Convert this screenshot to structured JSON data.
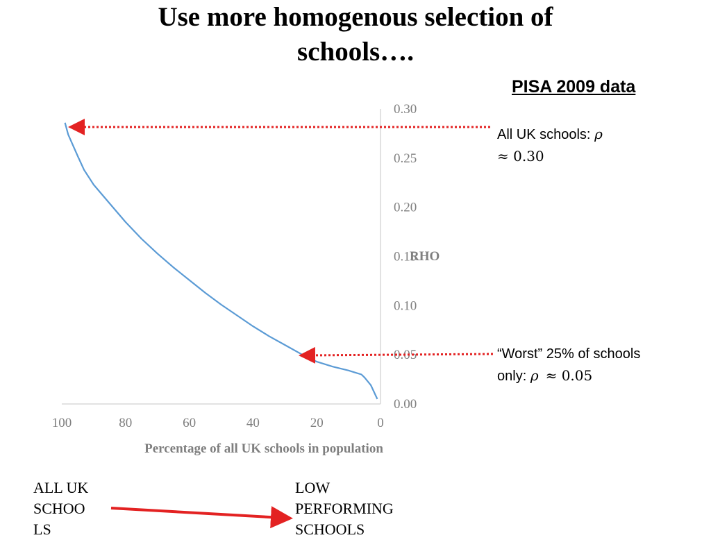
{
  "slide": {
    "title": "Use more homogenous selection of schools….",
    "subtitle": "PISA 2009 data"
  },
  "annotations": {
    "all_schools_text": "All UK schools: ",
    "all_schools_symbol": "ρ",
    "all_schools_value": "≈ 0.30",
    "worst_text_1": "“Worst” 25% of schools",
    "worst_text_2": "only: ",
    "worst_symbol": "ρ",
    "worst_value": "≈ 0.05"
  },
  "flow": {
    "from_line1": "ALL UK",
    "from_line2": "SCHOO",
    "from_line3": "LS",
    "to_line1": "LOW",
    "to_line2": "PERFORMING",
    "to_line3": "SCHOOLS"
  },
  "colors": {
    "line": "#5b9bd5",
    "arrow": "#e32222",
    "axis": "#d9d9d9",
    "tick_text": "#7f7f7f"
  },
  "chart_data": {
    "type": "line",
    "title": "",
    "xlabel": "Percentage of all UK schools in population",
    "ylabel": "RHO",
    "xlim": [
      100,
      0
    ],
    "ylim": [
      0,
      0.3
    ],
    "x_ticks": [
      "100",
      "80",
      "60",
      "40",
      "20",
      "0"
    ],
    "y_ticks": [
      "0.00",
      "0.05",
      "0.10",
      "0.15",
      "0.20",
      "0.25",
      "0.30"
    ],
    "grid": false,
    "series": [
      {
        "x": [
          99,
          98,
          95,
          93,
          90,
          85,
          80,
          75,
          70,
          65,
          60,
          55,
          50,
          45,
          40,
          35,
          30,
          25,
          20,
          15,
          10,
          8,
          6,
          5,
          3,
          1
        ],
        "values": [
          0.286,
          0.274,
          0.252,
          0.238,
          0.223,
          0.204,
          0.185,
          0.168,
          0.153,
          0.139,
          0.126,
          0.113,
          0.101,
          0.09,
          0.079,
          0.069,
          0.06,
          0.051,
          0.043,
          0.038,
          0.034,
          0.032,
          0.03,
          0.027,
          0.019,
          0.005
        ]
      }
    ]
  }
}
